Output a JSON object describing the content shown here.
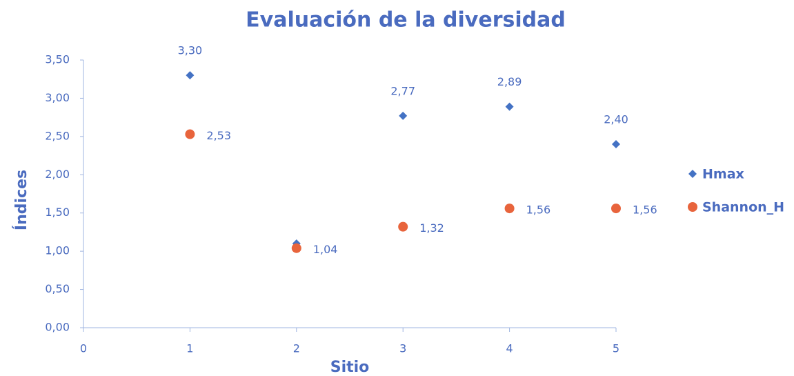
{
  "chart_data": {
    "type": "scatter",
    "title": "Evaluación de la diversidad",
    "x_label": "Sitio",
    "y_label": "Índices",
    "xlim": [
      0,
      5
    ],
    "xticks": [
      0,
      1,
      2,
      3,
      4,
      5
    ],
    "ylim": [
      0,
      3.5
    ],
    "yticks": [
      {
        "value": 0,
        "label": "0,00"
      },
      {
        "value": 0.5,
        "label": "0,50"
      },
      {
        "value": 1,
        "label": "1,00"
      },
      {
        "value": 1.5,
        "label": "1,50"
      },
      {
        "value": 2,
        "label": "2,00"
      },
      {
        "value": 2.5,
        "label": "2,50"
      },
      {
        "value": 3,
        "label": "3,00"
      },
      {
        "value": 3.5,
        "label": "3,50"
      }
    ],
    "grid": false,
    "legend": "right",
    "series": [
      {
        "name": "Hmax",
        "color": "#4472c4",
        "marker": "diamond",
        "x": [
          1,
          2,
          3,
          4,
          5
        ],
        "values": [
          3.3,
          1.1,
          2.77,
          2.89,
          2.4
        ],
        "value_labels": [
          "3,30",
          null,
          "2,77",
          "2,89",
          "2,40"
        ],
        "label_position": "above"
      },
      {
        "name": "Shannon_H",
        "color": "#e8643c",
        "marker": "circle",
        "x": [
          1,
          2,
          3,
          4,
          5
        ],
        "values": [
          2.53,
          1.04,
          1.32,
          1.56,
          1.56
        ],
        "value_labels": [
          "2,53",
          "1,04",
          "1,32",
          "1,56",
          "1,56"
        ],
        "label_position": "right"
      }
    ]
  }
}
